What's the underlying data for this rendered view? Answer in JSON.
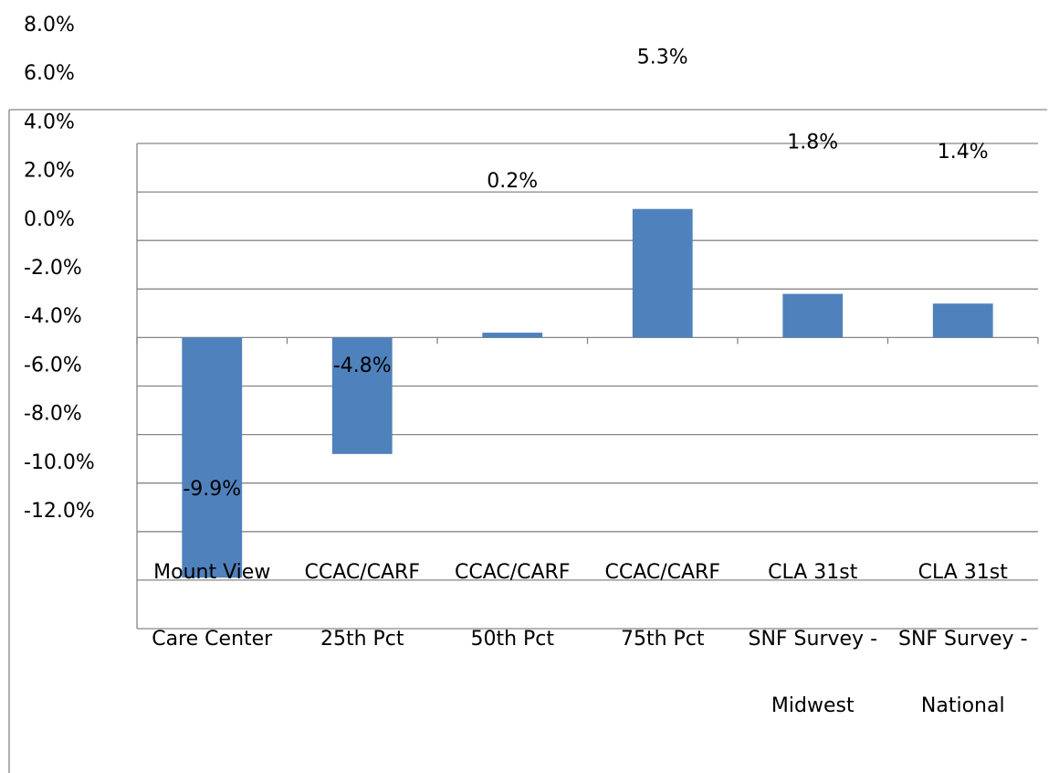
{
  "chart_data": {
    "type": "bar",
    "categories": [
      [
        "Mount View",
        "Care Center"
      ],
      [
        "CCAC/CARF",
        "25th Pct"
      ],
      [
        "CCAC/CARF",
        "50th Pct"
      ],
      [
        "CCAC/CARF",
        "75th Pct"
      ],
      [
        "CLA 31st",
        "SNF Survey -",
        "Midwest"
      ],
      [
        "CLA 31st",
        "SNF Survey -",
        "National"
      ]
    ],
    "values": [
      -9.9,
      -4.8,
      0.2,
      5.3,
      1.8,
      1.4
    ],
    "value_labels": [
      "-9.9%",
      "-4.8%",
      "0.2%",
      "5.3%",
      "1.8%",
      "1.4%"
    ],
    "color": "#4f81bd",
    "ylim": [
      -12,
      8
    ],
    "yticks": [
      {
        "value": 8,
        "label": "8.0%"
      },
      {
        "value": 6,
        "label": "6.0%"
      },
      {
        "value": 4,
        "label": "4.0%"
      },
      {
        "value": 2,
        "label": "2.0%"
      },
      {
        "value": 0,
        "label": "0.0%"
      },
      {
        "value": -2,
        "label": "-2.0%"
      },
      {
        "value": -4,
        "label": "-4.0%"
      },
      {
        "value": -6,
        "label": "-6.0%"
      },
      {
        "value": -8,
        "label": "-8.0%"
      },
      {
        "value": -10,
        "label": "-10.0%"
      },
      {
        "value": -12,
        "label": "-12.0%"
      }
    ],
    "grid": true
  }
}
